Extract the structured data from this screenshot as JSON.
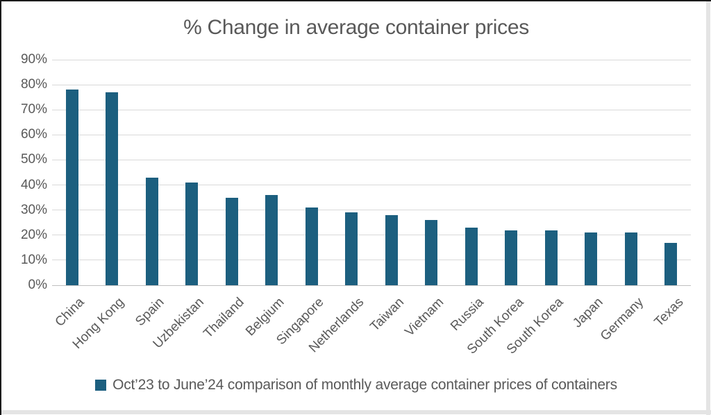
{
  "chart_data": {
    "type": "bar",
    "title": "% Change in average container prices",
    "categories": [
      "China",
      "Hong Kong",
      "Spain",
      "Uzbekistan",
      "Thailand",
      "Belgium",
      "Singapore",
      "Netherlands",
      "Taiwan",
      "Vietnam",
      "Russia",
      "South Korea",
      "South Korea",
      "Japan",
      "Germany",
      "Texas"
    ],
    "values": [
      78,
      77,
      43,
      41,
      35,
      36,
      31,
      29,
      28,
      26,
      23,
      22,
      22,
      21,
      21,
      17
    ],
    "xlabel": "",
    "ylabel": "",
    "ylim": [
      0,
      90
    ],
    "ytick_step": 10,
    "ytick_labels": [
      "0%",
      "10%",
      "20%",
      "30%",
      "40%",
      "50%",
      "60%",
      "70%",
      "80%",
      "90%"
    ],
    "grid": true,
    "legend": {
      "position": "bottom",
      "label": "Oct’23 to June’24 comparison of monthly average container prices of containers"
    },
    "colors": {
      "bar": "#1C5F7F",
      "text": "#595959",
      "gridline": "#D9D9D9",
      "axis_line": "#BFBFBF",
      "background": "#FFFFFF",
      "frame_border": "#1A1A1A",
      "edge_strip": "#E4E4E4"
    }
  }
}
